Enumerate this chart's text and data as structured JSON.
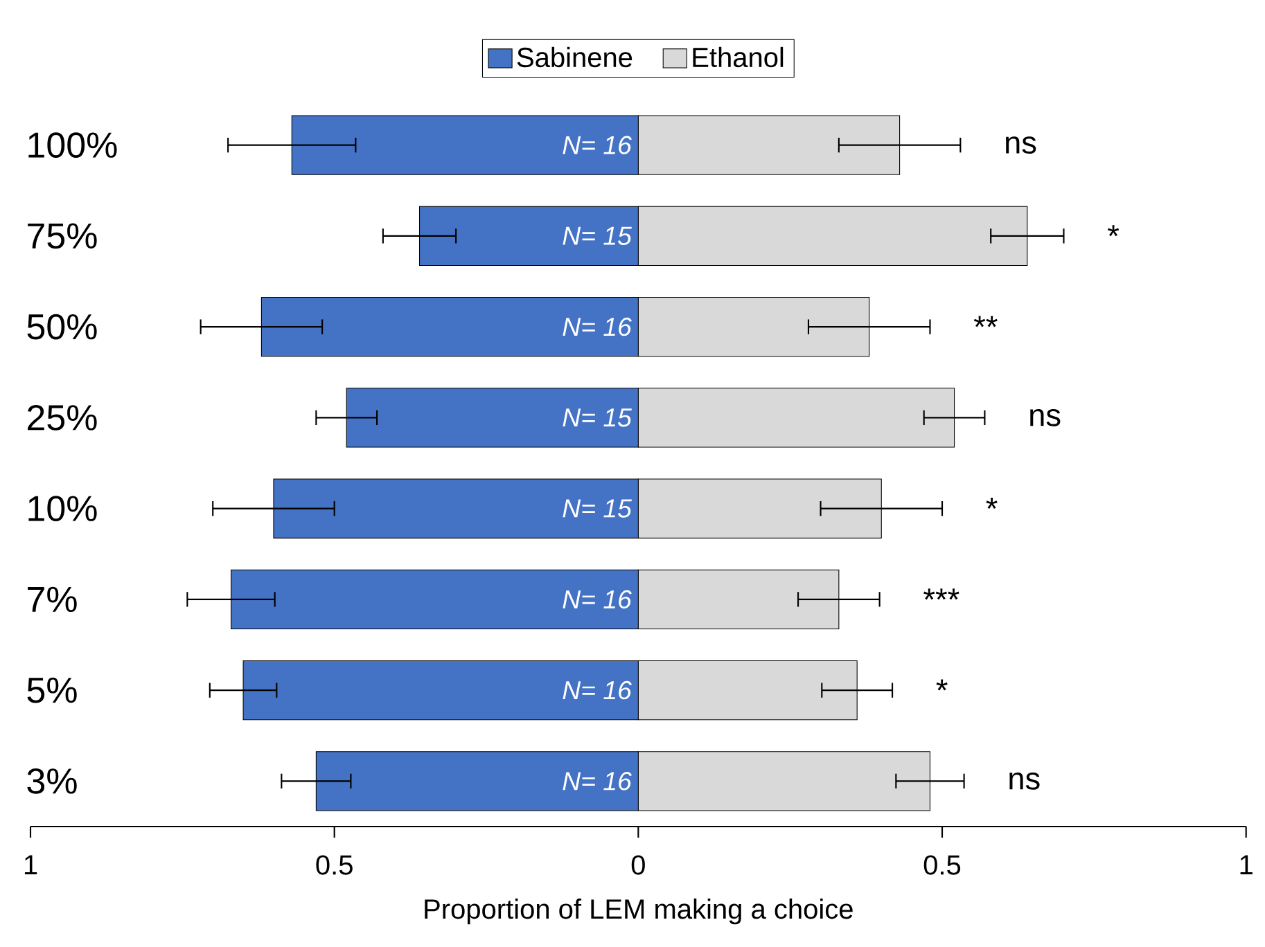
{
  "chart_data": {
    "type": "bar",
    "orientation": "horizontal",
    "xlabel": "Proportion of LEM making a choice",
    "categories": [
      "100%",
      "75%",
      "50%",
      "25%",
      "10%",
      "7%",
      "5%",
      "3%"
    ],
    "series": [
      {
        "name": "Sabinene",
        "color": "#4472c4",
        "values": [
          -0.57,
          -0.36,
          -0.62,
          -0.48,
          -0.6,
          -0.67,
          -0.65,
          -0.53
        ],
        "errors": [
          0.105,
          0.06,
          0.1,
          0.05,
          0.1,
          0.072,
          0.055,
          0.057
        ]
      },
      {
        "name": "Ethanol",
        "color": "#d9d9d9",
        "values": [
          0.43,
          0.64,
          0.38,
          0.52,
          0.4,
          0.33,
          0.36,
          0.48
        ],
        "errors": [
          0.1,
          0.06,
          0.1,
          0.05,
          0.1,
          0.067,
          0.058,
          0.056
        ]
      }
    ],
    "stacked": true,
    "xlim": [
      -1,
      1
    ],
    "xticks": [
      {
        "value": -1,
        "label": "1"
      },
      {
        "value": -0.5,
        "label": "0.5"
      },
      0,
      0.5,
      1
    ],
    "legend": "top",
    "annotations": [
      "N= 16",
      "N= 15",
      "N= 16",
      "N= 15",
      "N= 15",
      "N= 16",
      "N= 16",
      "N= 16",
      "ns",
      "*",
      "**",
      "ns",
      "*",
      "***",
      "*",
      "ns"
    ]
  }
}
